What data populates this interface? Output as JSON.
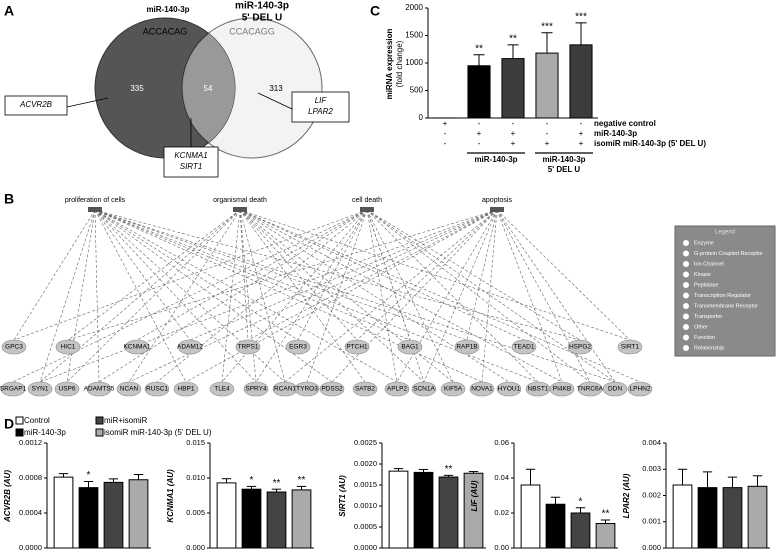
{
  "panel_labels": [
    "A",
    "B",
    "C",
    "D"
  ],
  "venn": {
    "left": {
      "title": "miR-140-3p",
      "seed": "ACCACAG"
    },
    "right": {
      "title": [
        "miR-140-3p",
        "5' DEL U"
      ],
      "seed": "CCACAGG"
    },
    "counts": [
      335,
      54,
      313
    ],
    "callouts": [
      [
        "ACVR2B"
      ],
      [
        "KCNMA1",
        "SIRT1"
      ],
      [
        "LIF",
        "LPAR2"
      ]
    ]
  },
  "network": {
    "functions": [
      "proliferation of cells",
      "organismal death",
      "cell death",
      "apoptosis"
    ],
    "genes_top": [
      "GPC3",
      "HIC1",
      "KCNMA1",
      "ADAM12",
      "TRPS1",
      "EGR3",
      "PTCH1",
      "BAG1",
      "RAP1B",
      "TEAD1",
      "HSPG2",
      "SIRT1"
    ],
    "genes_bottom": [
      "SRGAP1",
      "SYN1",
      "USP6",
      "ADAMTS5",
      "NCAN",
      "RUSC1",
      "HBP1",
      "TLE4",
      "SPRY4",
      "RCAN1",
      "TYRO3",
      "PDSS2",
      "SATB2",
      "APLP2",
      "SCN1A",
      "KIF5A",
      "NOVA1",
      "HYOU1",
      "NBST1",
      "PI4KB",
      "TNRC6A",
      "DDN",
      "LPHN2"
    ],
    "legend": {
      "title": "Legend",
      "items": [
        "Enzyme",
        "G-protein Coupled Receptor",
        "Ion Channel",
        "Kinase",
        "Peptidase",
        "Transcription Regulator",
        "Transmembrane Receptor",
        "Transporter",
        "Other",
        "Function",
        "Relationship"
      ]
    }
  },
  "panel_d_legend": [
    {
      "name": "Control",
      "color": "#ffffff"
    },
    {
      "name": "miR-140-3p",
      "color": "#000000"
    },
    {
      "name": "miR+isomiR",
      "color": "#444444"
    },
    {
      "name": "isomiR miR-140-3p (5' DEL U)",
      "color": "#aaaaaa"
    }
  ],
  "chart_data": [
    {
      "type": "bar",
      "ylabel": [
        "miRNA expression",
        "(fold change)"
      ],
      "values": [
        1,
        950,
        1080,
        1180,
        1330
      ],
      "errors": [
        null,
        200,
        250,
        370,
        400
      ],
      "colors": [
        "#ffffff",
        "#000000",
        "#3c3c3c",
        "#aaaaaa",
        "#3c3c3c"
      ],
      "significance": [
        null,
        "**",
        "**",
        "***",
        "***"
      ],
      "ylim": [
        0,
        2000
      ],
      "yticks": [
        0,
        500,
        1000,
        1500,
        2000
      ],
      "conditions": [
        {
          "name": "negative control",
          "marks": [
            "+",
            "-",
            "-",
            "-",
            "-"
          ]
        },
        {
          "name": "miR-140-3p",
          "marks": [
            "-",
            "+",
            "+",
            "-",
            "+"
          ]
        },
        {
          "name": "isomiR miR-140-3p (5' DEL U)",
          "marks": [
            "-",
            "-",
            "+",
            "+",
            "+"
          ]
        }
      ],
      "groups": [
        {
          "label": [
            "miR-140-3p"
          ]
        },
        {
          "label": [
            "miR-140-3p",
            "5' DEL U"
          ]
        }
      ]
    },
    {
      "type": "bar",
      "ylabel": "ACVR2B (AU)",
      "values": [
        0.00081,
        0.00069,
        0.00075,
        0.00078
      ],
      "errors": [
        4e-05,
        7e-05,
        4e-05,
        6e-05
      ],
      "significance": [
        null,
        "*",
        null,
        null
      ],
      "ylim": [
        0,
        0.0012
      ],
      "yticks": [
        {
          "value": 0,
          "label": "0.0000"
        },
        {
          "value": 0.0004,
          "label": "0.0004"
        },
        {
          "value": 0.0008,
          "label": "0.0008"
        },
        {
          "value": 0.0012,
          "label": "0.0012"
        }
      ]
    },
    {
      "type": "bar",
      "ylabel": "KCNMA1 (AU)",
      "values": [
        0.0093,
        0.0084,
        0.008,
        0.0083
      ],
      "errors": [
        0.0006,
        0.0004,
        0.0004,
        0.0005
      ],
      "significance": [
        null,
        "*",
        "**",
        "**"
      ],
      "ylim": [
        0,
        0.015
      ],
      "yticks": [
        {
          "value": 0,
          "label": "0.000"
        },
        {
          "value": 0.005,
          "label": "0.005"
        },
        {
          "value": 0.01,
          "label": "0.010"
        },
        {
          "value": 0.015,
          "label": "0.015"
        }
      ]
    },
    {
      "type": "bar",
      "ylabel": "SIRT1 (AU)",
      "values": [
        0.00183,
        0.0018,
        0.00169,
        0.00178
      ],
      "errors": [
        6e-05,
        7e-05,
        4e-05,
        4e-05
      ],
      "significance": [
        null,
        null,
        "**",
        null
      ],
      "ylim": [
        0,
        0.0025
      ],
      "yticks": [
        {
          "value": 0,
          "label": "0.0000"
        },
        {
          "value": 0.0005,
          "label": "0.0005"
        },
        {
          "value": 0.001,
          "label": "0.0010"
        },
        {
          "value": 0.0015,
          "label": "0.0015"
        },
        {
          "value": 0.002,
          "label": "0.0020"
        },
        {
          "value": 0.0025,
          "label": "0.0025"
        }
      ]
    },
    {
      "type": "bar",
      "ylabel": "LIF (AU)",
      "values": [
        0.036,
        0.025,
        0.02,
        0.014
      ],
      "errors": [
        0.009,
        0.004,
        0.003,
        0.002
      ],
      "significance": [
        null,
        null,
        "*",
        "**"
      ],
      "ylim": [
        0,
        0.06
      ],
      "yticks": [
        {
          "value": 0,
          "label": "0.00"
        },
        {
          "value": 0.02,
          "label": "0.02"
        },
        {
          "value": 0.04,
          "label": "0.04"
        },
        {
          "value": 0.06,
          "label": "0.06"
        }
      ]
    },
    {
      "type": "bar",
      "ylabel": "LPAR2 (AU)",
      "values": [
        0.0024,
        0.0023,
        0.0023,
        0.00235
      ],
      "errors": [
        0.0006,
        0.0006,
        0.0004,
        0.0004
      ],
      "significance": [
        null,
        null,
        null,
        null
      ],
      "ylim": [
        0,
        0.004
      ],
      "yticks": [
        {
          "value": 0,
          "label": "0.000"
        },
        {
          "value": 0.001,
          "label": "0.001"
        },
        {
          "value": 0.002,
          "label": "0.002"
        },
        {
          "value": 0.003,
          "label": "0.003"
        },
        {
          "value": 0.004,
          "label": "0.004"
        }
      ]
    }
  ]
}
